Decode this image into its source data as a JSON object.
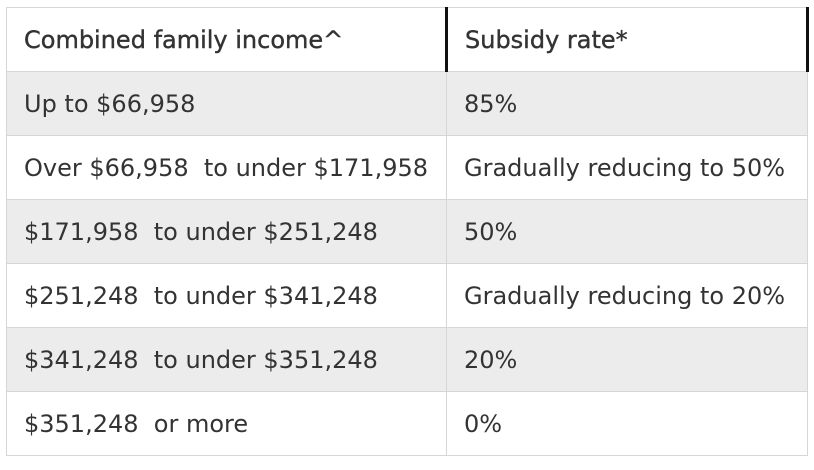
{
  "table": {
    "header": [
      "Combined family income^",
      "Subsidy rate*"
    ],
    "rows": [
      [
        "Up to $66,958",
        "85%"
      ],
      [
        "Over $66,958  to under $171,958",
        "Gradually reducing to 50%"
      ],
      [
        "$171,958  to under $251,248",
        "50%"
      ],
      [
        "$251,248  to under $341,248",
        "Gradually reducing to 20%"
      ],
      [
        "$341,248  to under $351,248",
        "20%"
      ],
      [
        "$351,248  or more",
        "0%"
      ]
    ]
  }
}
